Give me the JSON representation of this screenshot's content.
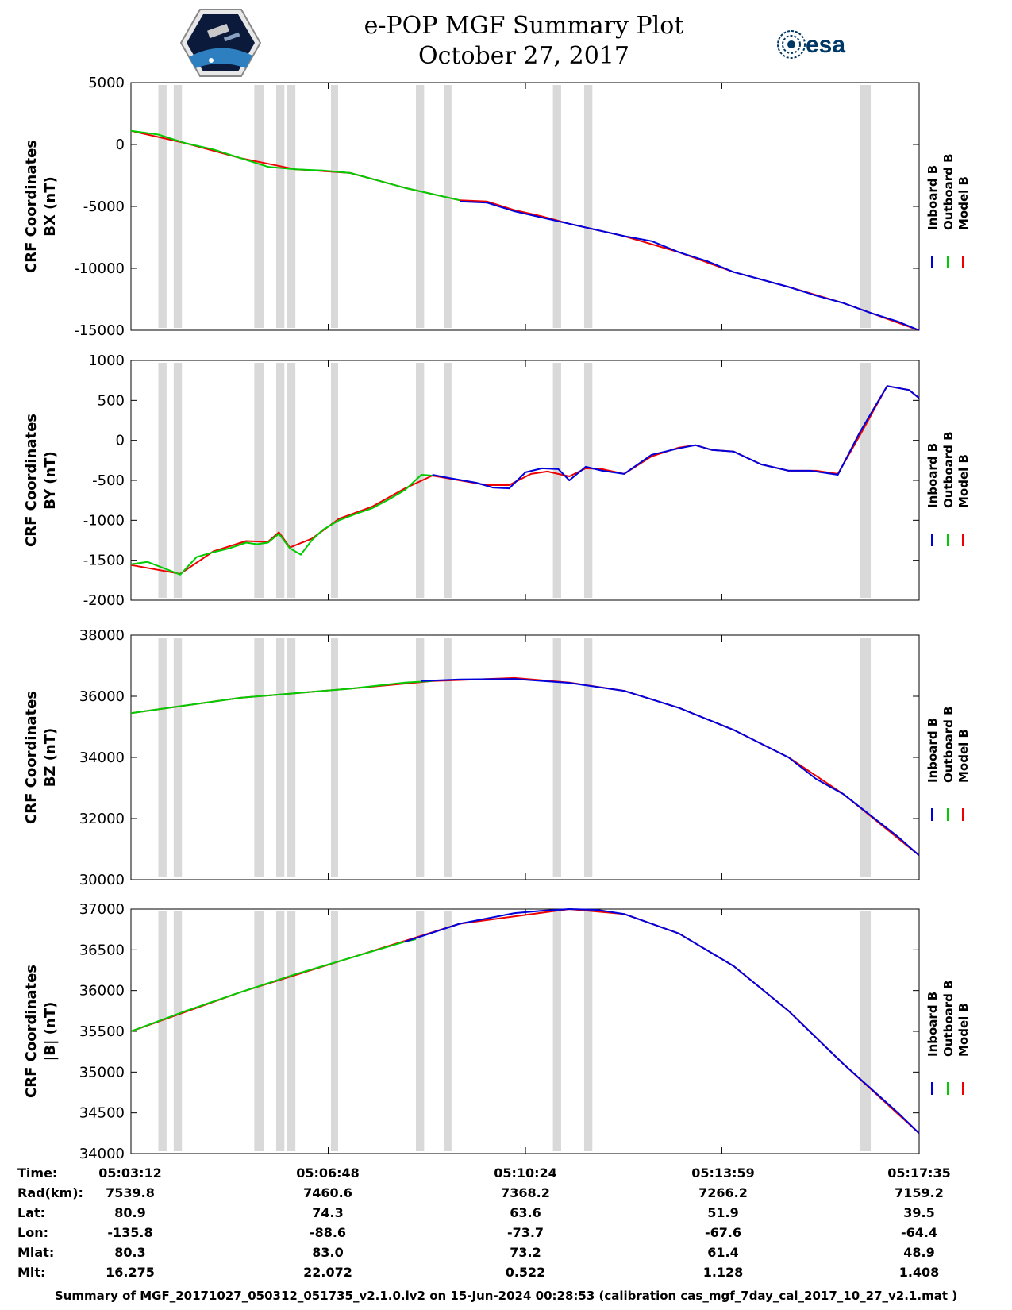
{
  "title": {
    "line1": "e-POP MGF Summary Plot",
    "line2": "October 27, 2017"
  },
  "logos": {
    "left": "e-POP CASSIOPE mission patch",
    "right": "esa"
  },
  "colors": {
    "inboard": "#0000dd",
    "outboard": "#00cc00",
    "model": "#ee0000",
    "gap": "#d9d9d9"
  },
  "time_ticks": [
    "05:03:12",
    "05:06:48",
    "05:10:24",
    "05:13:59",
    "05:17:35"
  ],
  "ephemeris": {
    "rows": [
      {
        "label": "Time:",
        "values": [
          "05:03:12",
          "05:06:48",
          "05:10:24",
          "05:13:59",
          "05:17:35"
        ]
      },
      {
        "label": "Rad(km):",
        "values": [
          "7539.8",
          "7460.6",
          "7368.2",
          "7266.2",
          "7159.2"
        ]
      },
      {
        "label": "Lat:",
        "values": [
          "80.9",
          "74.3",
          "63.6",
          "51.9",
          "39.5"
        ]
      },
      {
        "label": "Lon:",
        "values": [
          "-135.8",
          "-88.6",
          "-73.7",
          "-67.6",
          "-64.4"
        ]
      },
      {
        "label": "Mlat:",
        "values": [
          "80.3",
          "83.0",
          "73.2",
          "61.4",
          "48.9"
        ]
      },
      {
        "label": "Mlt:",
        "values": [
          "16.275",
          "22.072",
          "0.522",
          "1.128",
          "1.408"
        ]
      }
    ]
  },
  "footer": "Summary of MGF_20171027_050312_051735_v2.1.0.lv2 on 15-Jun-2024 00:28:53 (calibration cas_mgf_7day_cal_2017_10_27_v2.1.mat )",
  "chart_data": [
    {
      "type": "line",
      "ylabel": [
        "CRF Coordinates",
        "BX (nT)"
      ],
      "ylim": [
        -15000,
        5000
      ],
      "yticks": [
        5000,
        0,
        -5000,
        -10000,
        -15000
      ],
      "ytick_labels": [
        "5000",
        "0",
        "-5000",
        "-10000",
        "-15000"
      ],
      "xlim": [
        "05:03:12",
        "05:17:35"
      ],
      "legend": [
        "Inboard B",
        "Outboard B",
        "Model B"
      ],
      "legend_placement": "right",
      "gray_bands_minutes": [
        [
          0.5,
          0.65
        ],
        [
          0.78,
          0.93
        ],
        [
          2.25,
          2.42
        ],
        [
          2.65,
          2.8
        ],
        [
          2.85,
          3.0
        ],
        [
          3.65,
          3.78
        ],
        [
          5.2,
          5.35
        ],
        [
          5.72,
          5.85
        ],
        [
          7.7,
          7.85
        ],
        [
          8.27,
          8.42
        ],
        [
          13.3,
          13.5
        ]
      ],
      "series": [
        {
          "name": "Inboard B",
          "x_minutes": [
            6.0,
            6.5,
            7.0,
            7.5,
            8.0,
            8.5,
            9.0,
            9.5,
            10.0,
            10.5,
            11.0,
            11.5,
            12.0,
            12.5,
            13.0,
            13.5,
            14.0,
            14.38
          ],
          "values": [
            -4600,
            -4700,
            -5400,
            -5900,
            -6400,
            -6900,
            -7400,
            -7800,
            -8700,
            -9400,
            -10300,
            -10900,
            -11500,
            -12200,
            -12800,
            -13600,
            -14300,
            -15000
          ]
        },
        {
          "name": "Outboard B",
          "x_minutes": [
            0.0,
            0.5,
            1.0,
            1.5,
            2.0,
            2.5,
            3.0,
            3.5,
            4.0,
            4.5,
            5.0,
            5.5,
            6.0
          ],
          "values": [
            1100,
            800,
            100,
            -400,
            -1100,
            -1800,
            -2000,
            -2100,
            -2300,
            -2900,
            -3500,
            -4000,
            -4500
          ]
        },
        {
          "name": "Model B",
          "x_minutes": [
            0.0,
            1.0,
            2.0,
            3.0,
            4.0,
            5.0,
            6.0,
            6.5,
            7.0,
            7.5,
            8.0,
            8.5,
            9.0,
            10.0,
            11.0,
            12.0,
            13.0,
            14.38
          ],
          "values": [
            1100,
            100,
            -1100,
            -2000,
            -2300,
            -3500,
            -4500,
            -4600,
            -5300,
            -5800,
            -6400,
            -6900,
            -7400,
            -8700,
            -10300,
            -11500,
            -12800,
            -15000
          ]
        }
      ]
    },
    {
      "type": "line",
      "ylabel": [
        "CRF Coordinates",
        "BY (nT)"
      ],
      "ylim": [
        -2000,
        1000
      ],
      "yticks": [
        1000,
        500,
        0,
        -500,
        -1000,
        -1500,
        -2000
      ],
      "ytick_labels": [
        "1000",
        "500",
        "0",
        "-500",
        "-1000",
        "-1500",
        "-2000"
      ],
      "xlim": [
        "05:03:12",
        "05:17:35"
      ],
      "legend": [
        "Inboard B",
        "Outboard B",
        "Model B"
      ],
      "legend_placement": "right",
      "gray_bands_minutes": [
        [
          0.5,
          0.65
        ],
        [
          0.78,
          0.93
        ],
        [
          2.25,
          2.42
        ],
        [
          2.65,
          2.8
        ],
        [
          2.85,
          3.0
        ],
        [
          3.65,
          3.78
        ],
        [
          5.2,
          5.35
        ],
        [
          5.72,
          5.85
        ],
        [
          7.7,
          7.85
        ],
        [
          8.27,
          8.42
        ],
        [
          13.3,
          13.5
        ]
      ],
      "series": [
        {
          "name": "Inboard B",
          "x_minutes": [
            5.5,
            5.8,
            6.3,
            6.6,
            6.9,
            7.2,
            7.5,
            7.8,
            8.0,
            8.3,
            8.6,
            9.0,
            9.5,
            10.0,
            10.3,
            10.6,
            11.0,
            11.5,
            12.0,
            12.4,
            12.9,
            13.3,
            13.8,
            14.2,
            14.38
          ],
          "values": [
            -430,
            -470,
            -530,
            -590,
            -600,
            -400,
            -350,
            -360,
            -500,
            -330,
            -380,
            -420,
            -180,
            -100,
            -60,
            -120,
            -140,
            -300,
            -380,
            -380,
            -430,
            100,
            680,
            630,
            530
          ]
        },
        {
          "name": "Outboard B",
          "x_minutes": [
            0.0,
            0.3,
            0.6,
            0.9,
            1.2,
            1.5,
            1.8,
            2.1,
            2.3,
            2.5,
            2.7,
            2.9,
            3.1,
            3.3,
            3.5,
            3.8,
            4.1,
            4.4,
            4.7,
            5.0,
            5.3,
            5.5
          ],
          "values": [
            -1550,
            -1520,
            -1600,
            -1680,
            -1460,
            -1400,
            -1350,
            -1280,
            -1300,
            -1280,
            -1170,
            -1350,
            -1430,
            -1250,
            -1120,
            -1000,
            -920,
            -850,
            -740,
            -620,
            -430,
            -440
          ]
        },
        {
          "name": "Model B",
          "x_minutes": [
            0.0,
            0.9,
            1.5,
            2.1,
            2.5,
            2.7,
            2.9,
            3.3,
            3.8,
            4.4,
            5.0,
            5.5,
            6.0,
            6.5,
            6.9,
            7.3,
            7.6,
            8.0,
            8.3,
            8.6,
            9.0,
            9.5,
            10.0,
            10.3,
            10.6,
            11.0,
            11.5,
            12.0,
            12.5,
            12.9,
            13.3,
            13.8,
            14.2,
            14.38
          ],
          "values": [
            -1560,
            -1670,
            -1390,
            -1260,
            -1270,
            -1150,
            -1340,
            -1230,
            -980,
            -830,
            -600,
            -440,
            -500,
            -560,
            -560,
            -420,
            -390,
            -450,
            -350,
            -360,
            -420,
            -200,
            -90,
            -60,
            -120,
            -140,
            -300,
            -380,
            -380,
            -420,
            60,
            680,
            630,
            530
          ]
        }
      ]
    },
    {
      "type": "line",
      "ylabel": [
        "CRF Coordinates",
        "BZ (nT)"
      ],
      "ylim": [
        30000,
        38000
      ],
      "yticks": [
        38000,
        36000,
        34000,
        32000,
        30000
      ],
      "ytick_labels": [
        "38000",
        "36000",
        "34000",
        "32000",
        "30000"
      ],
      "xlim": [
        "05:03:12",
        "05:17:35"
      ],
      "legend": [
        "Inboard B",
        "Outboard B",
        "Model B"
      ],
      "legend_placement": "right",
      "gray_bands_minutes": [
        [
          0.5,
          0.65
        ],
        [
          0.78,
          0.93
        ],
        [
          2.25,
          2.42
        ],
        [
          2.65,
          2.8
        ],
        [
          2.85,
          3.0
        ],
        [
          3.65,
          3.78
        ],
        [
          5.2,
          5.35
        ],
        [
          5.72,
          5.85
        ],
        [
          7.7,
          7.85
        ],
        [
          8.27,
          8.42
        ],
        [
          13.3,
          13.5
        ]
      ],
      "series": [
        {
          "name": "Inboard B",
          "x_minutes": [
            5.3,
            6.0,
            7.0,
            8.0,
            9.0,
            10.0,
            11.0,
            12.0,
            12.5,
            13.0,
            13.5,
            14.0,
            14.38
          ],
          "values": [
            36500,
            36550,
            36570,
            36440,
            36180,
            35620,
            34900,
            34000,
            33300,
            32800,
            32100,
            31400,
            30800
          ]
        },
        {
          "name": "Outboard B",
          "x_minutes": [
            0.0,
            1.0,
            2.0,
            3.0,
            4.0,
            5.0,
            5.5
          ],
          "values": [
            35450,
            35700,
            35950,
            36100,
            36250,
            36450,
            36500
          ]
        },
        {
          "name": "Model B",
          "x_minutes": [
            0.0,
            2.0,
            4.0,
            5.5,
            7.0,
            8.0,
            9.0,
            10.0,
            11.0,
            12.0,
            13.0,
            14.38
          ],
          "values": [
            35450,
            35950,
            36250,
            36500,
            36600,
            36450,
            36180,
            35620,
            34900,
            34000,
            32800,
            30800
          ]
        }
      ]
    },
    {
      "type": "line",
      "ylabel": [
        "CRF Coordinates",
        "|B| (nT)"
      ],
      "ylim": [
        34000,
        37000
      ],
      "yticks": [
        37000,
        36500,
        36000,
        35500,
        35000,
        34500,
        34000
      ],
      "ytick_labels": [
        "37000",
        "36500",
        "36000",
        "35500",
        "35000",
        "34500",
        "34000"
      ],
      "xlim": [
        "05:03:12",
        "05:17:35"
      ],
      "legend": [
        "Inboard B",
        "Outboard B",
        "Model B"
      ],
      "legend_placement": "right",
      "gray_bands_minutes": [
        [
          0.5,
          0.65
        ],
        [
          0.78,
          0.93
        ],
        [
          2.25,
          2.42
        ],
        [
          2.65,
          2.8
        ],
        [
          2.85,
          3.0
        ],
        [
          3.65,
          3.78
        ],
        [
          5.2,
          5.35
        ],
        [
          5.72,
          5.85
        ],
        [
          7.7,
          7.85
        ],
        [
          8.27,
          8.42
        ],
        [
          13.3,
          13.5
        ]
      ],
      "series": [
        {
          "name": "Inboard B",
          "x_minutes": [
            5.0,
            6.0,
            7.0,
            7.5,
            8.0,
            8.5,
            9.0,
            10.0,
            11.0,
            12.0,
            13.0,
            13.5,
            14.0,
            14.38
          ],
          "values": [
            36600,
            36820,
            36950,
            36980,
            37000,
            36990,
            36940,
            36700,
            36300,
            35750,
            35100,
            34800,
            34500,
            34250
          ]
        },
        {
          "name": "Outboard B",
          "x_minutes": [
            0.0,
            1.0,
            2.0,
            3.0,
            4.0,
            5.0,
            5.2
          ],
          "values": [
            35500,
            35750,
            35980,
            36200,
            36400,
            36600,
            36630
          ]
        },
        {
          "name": "Model B",
          "x_minutes": [
            0.0,
            2.0,
            4.0,
            6.0,
            8.0,
            9.0,
            10.0,
            11.0,
            12.0,
            13.0,
            14.38
          ],
          "values": [
            35500,
            35980,
            36400,
            36820,
            37000,
            36940,
            36700,
            36300,
            35750,
            35100,
            34250
          ]
        }
      ]
    }
  ]
}
